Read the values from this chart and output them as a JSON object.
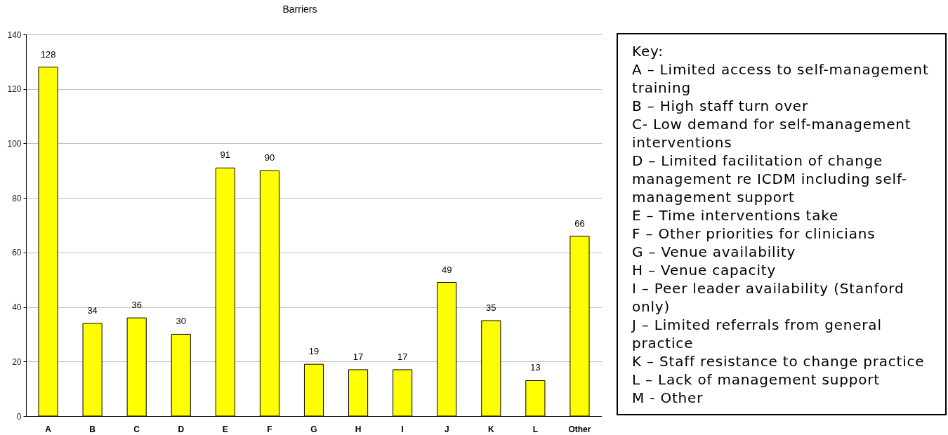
{
  "chart_data": {
    "type": "bar",
    "title": "Barriers",
    "categories": [
      "A",
      "B",
      "C",
      "D",
      "E",
      "F",
      "G",
      "H",
      "I",
      "J",
      "K",
      "L",
      "Other"
    ],
    "values": [
      128,
      34,
      36,
      30,
      91,
      90,
      19,
      17,
      17,
      49,
      35,
      13,
      66
    ],
    "color": "#ffff00",
    "ylim": [
      0,
      140
    ],
    "yticks": [
      0,
      20,
      40,
      60,
      80,
      100,
      120,
      140
    ],
    "grid": "y",
    "data_labels": true,
    "annotations": [
      "Key:",
      "A – Limited access to self-management training",
      "B – High staff turn over",
      "C- Low demand for self-management interventions",
      "D – Limited facilitation of change management re ICDM including self-management support",
      "E – Time interventions take",
      "F – Other priorities for clinicians",
      "G – Venue availability",
      "H – Venue capacity",
      "I – Peer leader availability (Stanford only)",
      "J – Limited referrals from general practice",
      "K – Staff resistance to change practice",
      "L – Lack of management support",
      "M - Other"
    ]
  }
}
